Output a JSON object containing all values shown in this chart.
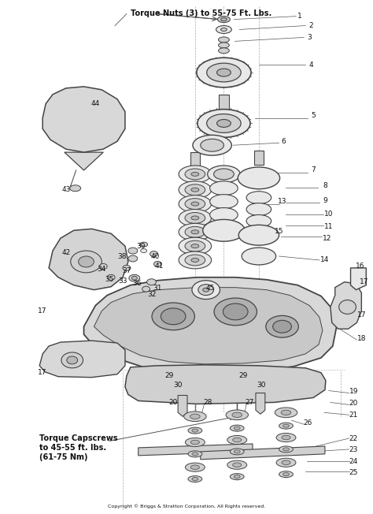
{
  "background_color": "#ffffff",
  "fig_width": 4.74,
  "fig_height": 6.52,
  "dpi": 100,
  "top_note": "Torque Nuts (3) to 55-75 Ft. Lbs.",
  "bottom_note1": "Torque Capscrews",
  "bottom_note2": "to 45-55 ft. lbs.",
  "bottom_note3": "(61-75 Nm)",
  "copyright": "Copyright © Briggs & Stratton Corporation, All Rights reserved.",
  "note_fontsize": 6.5,
  "label_fontsize": 6.5,
  "lc": "#444444",
  "fc_light": "#e8e8e8",
  "fc_mid": "#d0d0d0",
  "fc_dark": "#b8b8b8",
  "fc_deck": "#e0e0e0"
}
